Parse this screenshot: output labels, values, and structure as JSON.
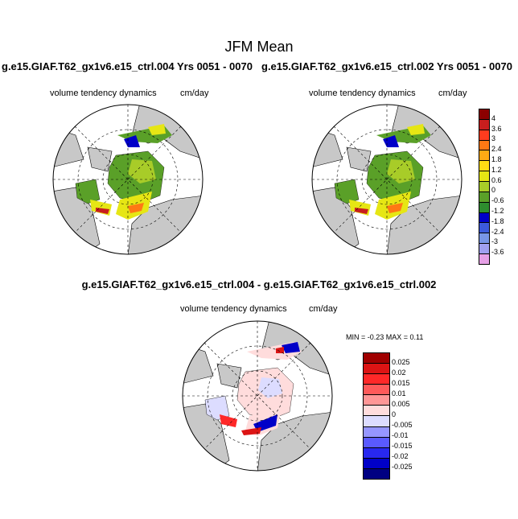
{
  "main_title": "JFM Mean",
  "panel_left": {
    "case_title": "g.e15.GIAF.T62_gx1v6.e15_ctrl.004  Yrs 0051 - 0070",
    "variable": "volume tendency dynamics",
    "units": "cm/day"
  },
  "panel_right": {
    "case_title": "g.e15.GIAF.T62_gx1v6.e15_ctrl.002  Yrs 0051 - 0070",
    "variable": "volume tendency dynamics",
    "units": "cm/day"
  },
  "panel_diff": {
    "title": "g.e15.GIAF.T62_gx1v6.e15_ctrl.004 - g.e15.GIAF.T62_gx1v6.e15_ctrl.002",
    "variable": "volume tendency dynamics",
    "units": "cm/day",
    "minmax": "MIN =  -0.23 MAX =   0.11"
  },
  "colorbar_top": {
    "labels": [
      "4",
      "3.6",
      "3",
      "2.4",
      "1.8",
      "1.2",
      "0.6",
      "0",
      "-0.6",
      "-1.2",
      "-1.8",
      "-2.4",
      "-3",
      "-3.6"
    ],
    "colors": [
      "#8b0000",
      "#c81e1e",
      "#ff3c1e",
      "#ff7814",
      "#ffaa14",
      "#ffdc14",
      "#e6e614",
      "#a8cc28",
      "#5aa028",
      "#2e8c2e",
      "#0000c8",
      "#3c5adc",
      "#7896e6",
      "#a0a0f0",
      "#e6a0e6"
    ]
  },
  "colorbar_diff": {
    "labels": [
      "0.025",
      "0.02",
      "0.015",
      "0.01",
      "0.005",
      "0",
      "-0.005",
      "-0.01",
      "-0.015",
      "-0.02",
      "-0.025"
    ],
    "colors": [
      "#a00000",
      "#dc1414",
      "#ff2828",
      "#ff5a5a",
      "#ff9696",
      "#ffdcdc",
      "#dcdcff",
      "#9696ff",
      "#5a5aff",
      "#2828f0",
      "#0000c8",
      "#000082"
    ]
  }
}
